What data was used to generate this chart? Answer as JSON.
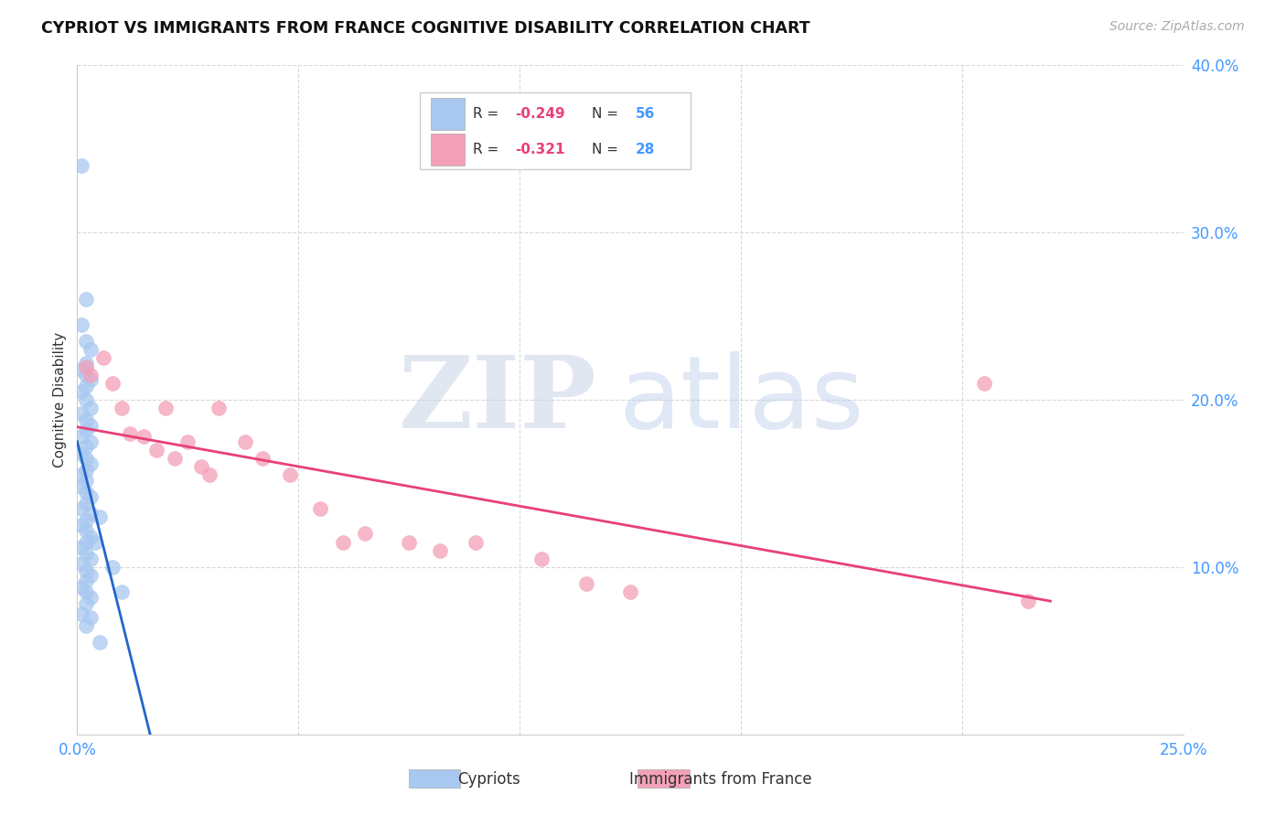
{
  "title": "CYPRIOT VS IMMIGRANTS FROM FRANCE COGNITIVE DISABILITY CORRELATION CHART",
  "source": "Source: ZipAtlas.com",
  "ylabel": "Cognitive Disability",
  "xlim": [
    0.0,
    0.25
  ],
  "ylim": [
    0.0,
    0.4
  ],
  "cypriot_color": "#a8c8f0",
  "france_color": "#f4a0b8",
  "line_blue": "#2266cc",
  "line_pink": "#e8407a",
  "cypriot_x": [
    0.001,
    0.002,
    0.001,
    0.002,
    0.003,
    0.002,
    0.001,
    0.002,
    0.003,
    0.002,
    0.001,
    0.002,
    0.003,
    0.001,
    0.002,
    0.003,
    0.002,
    0.001,
    0.003,
    0.002,
    0.001,
    0.002,
    0.003,
    0.002,
    0.001,
    0.002,
    0.001,
    0.002,
    0.003,
    0.002,
    0.001,
    0.003,
    0.002,
    0.001,
    0.002,
    0.003,
    0.002,
    0.001,
    0.002,
    0.003,
    0.001,
    0.002,
    0.003,
    0.002,
    0.001,
    0.002,
    0.003,
    0.002,
    0.001,
    0.002,
    0.005,
    0.004,
    0.008,
    0.01,
    0.003,
    0.005
  ],
  "cypriot_y": [
    0.34,
    0.26,
    0.245,
    0.235,
    0.23,
    0.222,
    0.218,
    0.215,
    0.212,
    0.208,
    0.205,
    0.2,
    0.195,
    0.192,
    0.188,
    0.185,
    0.182,
    0.178,
    0.175,
    0.172,
    0.168,
    0.165,
    0.162,
    0.158,
    0.155,
    0.152,
    0.148,
    0.145,
    0.142,
    0.138,
    0.135,
    0.132,
    0.128,
    0.125,
    0.122,
    0.118,
    0.115,
    0.112,
    0.108,
    0.105,
    0.102,
    0.098,
    0.095,
    0.092,
    0.088,
    0.085,
    0.082,
    0.078,
    0.072,
    0.065,
    0.13,
    0.115,
    0.1,
    0.085,
    0.07,
    0.055
  ],
  "france_x": [
    0.002,
    0.003,
    0.006,
    0.008,
    0.01,
    0.012,
    0.015,
    0.018,
    0.02,
    0.022,
    0.025,
    0.028,
    0.03,
    0.032,
    0.038,
    0.042,
    0.048,
    0.055,
    0.06,
    0.065,
    0.075,
    0.082,
    0.09,
    0.105,
    0.115,
    0.125,
    0.205,
    0.215
  ],
  "france_y": [
    0.22,
    0.215,
    0.225,
    0.21,
    0.195,
    0.18,
    0.178,
    0.17,
    0.195,
    0.165,
    0.175,
    0.16,
    0.155,
    0.195,
    0.175,
    0.165,
    0.155,
    0.135,
    0.115,
    0.12,
    0.115,
    0.11,
    0.115,
    0.105,
    0.09,
    0.085,
    0.21,
    0.08
  ],
  "background_color": "#ffffff",
  "grid_color": "#d8d8d8"
}
